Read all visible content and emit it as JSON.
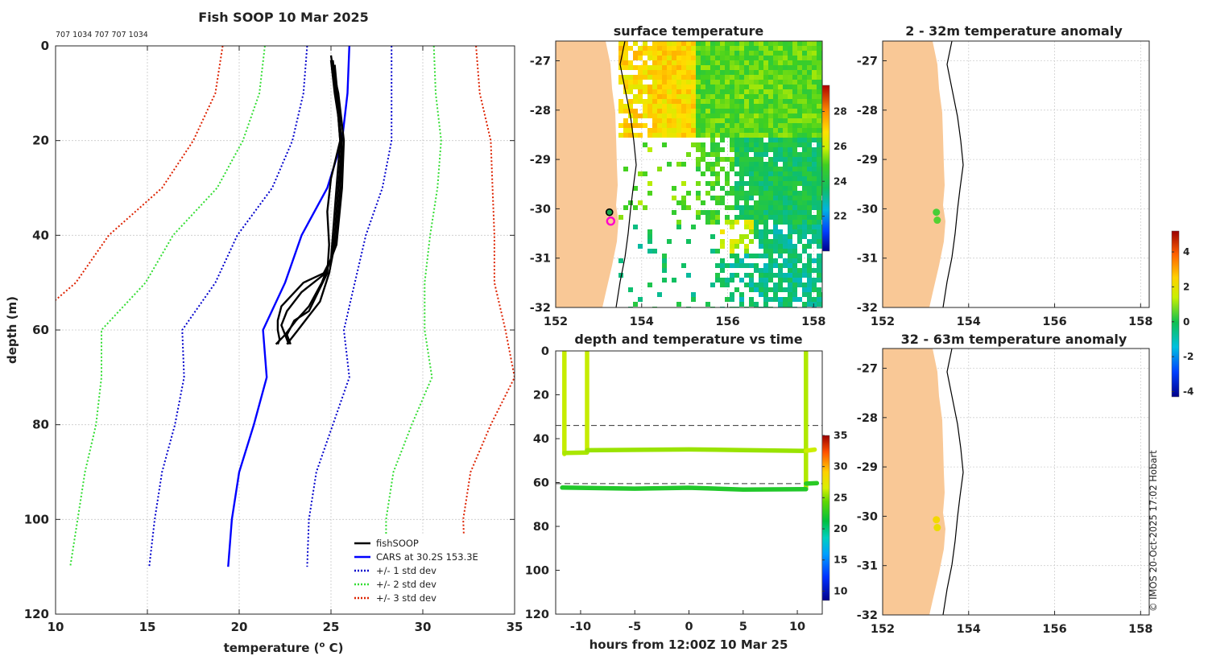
{
  "colors": {
    "fishsoop": "#000000",
    "cars": "#0000ff",
    "std1": "#0000cc",
    "std2": "#33dd33",
    "std3": "#dd2200",
    "land": "#f9c896",
    "grid": "#bbbbbb"
  },
  "chart_data": [
    {
      "id": "profile",
      "type": "line",
      "title": "Fish SOOP 10 Mar 2025",
      "subtitle": "707 1034 707 707 1034",
      "xlabel": "temperature (",
      "xlabel_sup": "o",
      "xlabel_end": " C)",
      "ylabel": "depth (m)",
      "xlim": [
        10,
        35
      ],
      "ylim": [
        0,
        120
      ],
      "y_reversed": true,
      "xticks": [
        "10",
        "15",
        "20",
        "25",
        "30",
        "35"
      ],
      "yticks": [
        "0",
        "20",
        "40",
        "60",
        "80",
        "100",
        "120"
      ],
      "legend_position": "bottom-right",
      "legend": [
        "fishSOOP",
        "CARS at 30.2S 153.3E",
        "+/- 1 std dev",
        "+/- 2 std dev",
        "+/- 3 std dev"
      ],
      "cars_depth": [
        0,
        10,
        20,
        30,
        40,
        50,
        60,
        70,
        80,
        90,
        100,
        110
      ],
      "cars_temp": [
        26.0,
        25.9,
        25.6,
        24.8,
        23.4,
        22.5,
        21.3,
        21.5,
        20.8,
        20.0,
        19.6,
        19.4
      ],
      "std_offsets": {
        "s1": [
          2.3,
          2.4,
          2.7,
          3.0,
          3.5,
          3.8,
          4.4,
          4.5,
          4.3,
          4.2,
          4.2,
          4.3
        ],
        "s2": [
          4.6,
          4.8,
          5.4,
          6.0,
          7.0,
          7.6,
          8.8,
          9.0,
          8.6,
          8.4,
          8.4,
          8.6
        ],
        "s3": [
          6.9,
          7.2,
          8.1,
          9.0,
          10.5,
          11.4,
          13.2,
          13.5,
          12.9,
          12.6,
          12.6,
          12.9
        ]
      },
      "fishsoop_profiles": [
        {
          "depth": [
            2,
            10,
            20,
            30,
            40,
            45,
            48,
            50,
            55,
            58,
            60,
            62,
            63
          ],
          "temp": [
            25.0,
            25.3,
            25.5,
            25.3,
            25.1,
            25.0,
            24.6,
            23.5,
            22.3,
            22.1,
            22.1,
            22.2,
            22.1
          ]
        },
        {
          "depth": [
            3,
            10,
            20,
            30,
            40,
            45,
            48,
            52,
            56,
            59,
            61,
            63
          ],
          "temp": [
            25.0,
            25.2,
            25.6,
            25.4,
            25.2,
            25.0,
            24.7,
            23.4,
            22.6,
            22.3,
            22.5,
            22.7
          ]
        },
        {
          "depth": [
            3,
            10,
            20,
            28,
            35,
            42,
            48,
            52,
            56,
            58,
            61,
            63
          ],
          "temp": [
            25.1,
            25.3,
            25.5,
            25.0,
            24.8,
            24.9,
            24.8,
            24.3,
            23.8,
            23.0,
            22.6,
            22.8
          ]
        },
        {
          "depth": [
            4,
            12,
            22,
            30,
            40,
            48,
            54,
            57,
            60,
            62,
            63
          ],
          "temp": [
            25.2,
            25.4,
            25.6,
            25.5,
            25.3,
            24.9,
            24.4,
            23.8,
            23.2,
            22.8,
            22.6
          ]
        },
        {
          "depth": [
            3,
            10,
            20,
            30,
            42,
            50,
            55,
            58,
            61,
            63
          ],
          "temp": [
            25.0,
            25.4,
            25.7,
            25.6,
            25.3,
            24.5,
            23.8,
            23.1,
            22.5,
            22.0
          ]
        }
      ]
    },
    {
      "id": "surface-map",
      "type": "heatmap",
      "title": "surface temperature",
      "xlim": [
        152,
        158.2
      ],
      "ylim": [
        -32,
        -26.6
      ],
      "xticks": [
        "152",
        "154",
        "156",
        "158"
      ],
      "yticks": [
        "-27",
        "-28",
        "-29",
        "-30",
        "-31",
        "-32"
      ],
      "colorbar_ticks": [
        "22",
        "24",
        "26",
        "28"
      ],
      "colorbar_range": [
        20,
        29.5
      ],
      "markers": [
        {
          "lon": 153.25,
          "lat": -30.07,
          "kind": "filled"
        },
        {
          "lon": 153.28,
          "lat": -30.25,
          "kind": "ring"
        }
      ]
    },
    {
      "id": "anomaly-2-32",
      "type": "scatter",
      "title": "2 - 32m temperature anomaly",
      "xlim": [
        152,
        158.2
      ],
      "ylim": [
        -32,
        -26.6
      ],
      "xticks": [
        "152",
        "154",
        "156",
        "158"
      ],
      "yticks": [
        "-27",
        "-28",
        "-29",
        "-30",
        "-31",
        "-32"
      ],
      "points": [
        {
          "lon": 153.25,
          "lat": -30.07,
          "anomaly": 0.4
        },
        {
          "lon": 153.27,
          "lat": -30.23,
          "anomaly": 0.5
        }
      ]
    },
    {
      "id": "anomaly-32-63",
      "type": "scatter",
      "title": "32 - 63m temperature anomaly",
      "xlim": [
        152,
        158.2
      ],
      "ylim": [
        -32,
        -26.6
      ],
      "xticks": [
        "152",
        "154",
        "156",
        "158"
      ],
      "yticks": [
        "-27",
        "-28",
        "-29",
        "-30",
        "-31",
        "-32"
      ],
      "points": [
        {
          "lon": 153.25,
          "lat": -30.07,
          "anomaly": 2.3
        },
        {
          "lon": 153.27,
          "lat": -30.23,
          "anomaly": 2.1
        }
      ],
      "colorbar_ticks": [
        "4",
        "2",
        "0",
        "-2",
        "-4"
      ],
      "colorbar_range": [
        -4.3,
        5.2
      ]
    },
    {
      "id": "depth-time",
      "type": "scatter",
      "title": "depth and temperature vs time",
      "xlabel": "hours from 12:00Z 10 Mar 25",
      "xlim": [
        -12.3,
        12.3
      ],
      "ylim": [
        0,
        120
      ],
      "y_reversed": true,
      "xticks": [
        "-10",
        "-5",
        "0",
        "5",
        "10"
      ],
      "yticks": [
        "0",
        "20",
        "40",
        "60",
        "80",
        "100",
        "120"
      ],
      "dashed_depths": [
        34,
        60.5
      ],
      "colorbar_ticks": [
        "10",
        "15",
        "20",
        "25",
        "30",
        "35"
      ],
      "colorbar_range": [
        8.5,
        35
      ],
      "segments": [
        {
          "t": [
            -11.5,
            -11.5
          ],
          "d": [
            0.5,
            47
          ],
          "temp": 26.2
        },
        {
          "t": [
            -11.5,
            -9.4
          ],
          "d": [
            46.5,
            46.3
          ],
          "temp": 25.7
        },
        {
          "t": [
            -9.4,
            -9.4
          ],
          "d": [
            0.5,
            45
          ],
          "temp": 26.2
        },
        {
          "t": [
            -9.4,
            0,
            5,
            10.8
          ],
          "d": [
            45.3,
            44.9,
            45.2,
            45.6
          ],
          "temp": 25.4
        },
        {
          "t": [
            10.8,
            10.8
          ],
          "d": [
            0.5,
            63
          ],
          "temp": 25.8
        },
        {
          "t": [
            10.8,
            11.6
          ],
          "d": [
            45.5,
            45
          ],
          "temp": 26.3
        },
        {
          "t": [
            -11.7,
            -5,
            0,
            5,
            10.8
          ],
          "d": [
            62.3,
            62.8,
            62.4,
            63.2,
            63
          ],
          "temp": 22.3
        },
        {
          "t": [
            10.8,
            11.8
          ],
          "d": [
            60.5,
            60.3
          ],
          "temp": 22.6
        }
      ]
    }
  ],
  "watermark": "© IMOS 20-Oct-2025 17:02 Hobart"
}
